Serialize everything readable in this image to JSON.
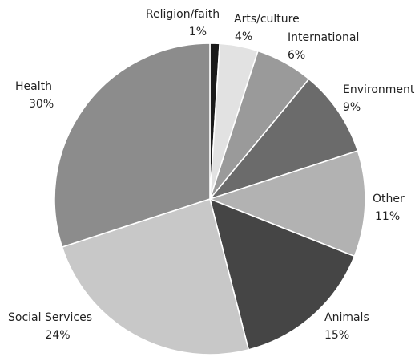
{
  "chart_data": {
    "type": "pie",
    "title": "",
    "slices": [
      {
        "label": "Religion/faith",
        "value": 1,
        "value_text": "1%",
        "color": "#1a1a1a"
      },
      {
        "label": "Arts/culture",
        "value": 4,
        "value_text": "4%",
        "color": "#e2e2e2"
      },
      {
        "label": "International",
        "value": 6,
        "value_text": "6%",
        "color": "#9a9a9a"
      },
      {
        "label": "Environment",
        "value": 9,
        "value_text": "9%",
        "color": "#6b6b6b"
      },
      {
        "label": "Other",
        "value": 11,
        "value_text": "11%",
        "color": "#b2b2b2"
      },
      {
        "label": "Animals",
        "value": 15,
        "value_text": "15%",
        "color": "#454545"
      },
      {
        "label": "Social Services",
        "value": 24,
        "value_text": "24%",
        "color": "#c8c8c8"
      },
      {
        "label": "Health",
        "value": 30,
        "value_text": "30%",
        "color": "#8c8c8c"
      }
    ]
  }
}
